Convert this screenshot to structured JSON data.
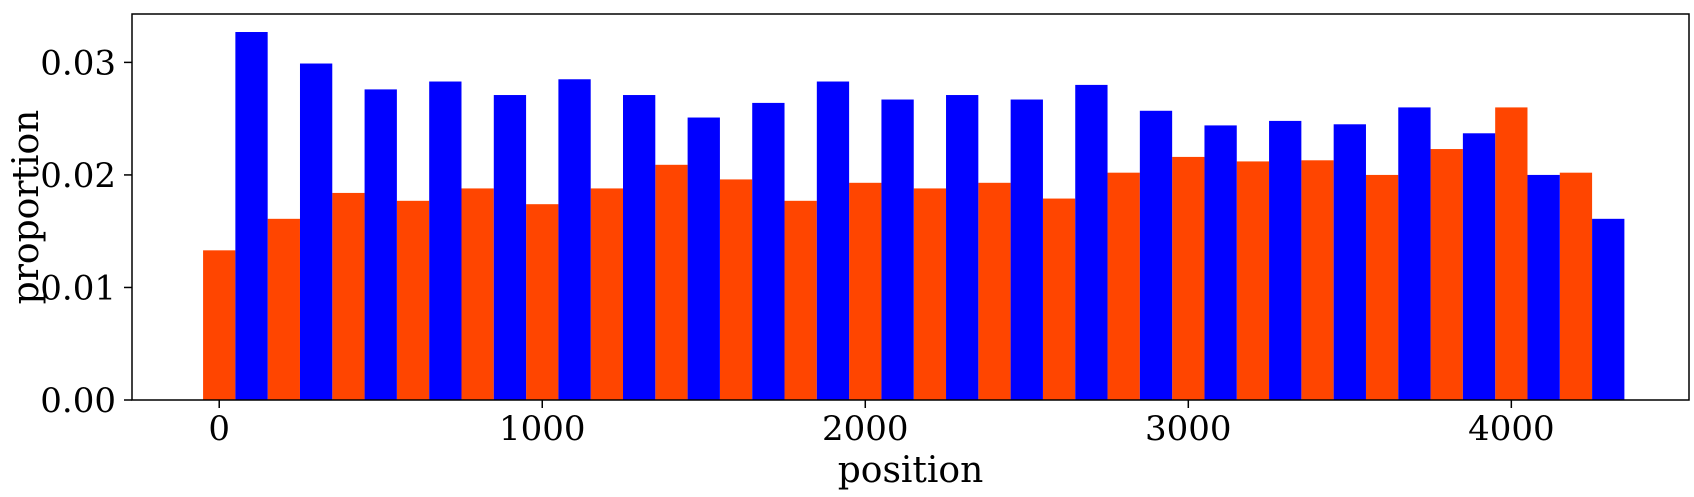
{
  "chart_data": {
    "type": "bar",
    "xlabel": "position",
    "ylabel": "proportion",
    "xlim": [
      -270,
      4550
    ],
    "ylim": [
      0,
      0.0343
    ],
    "xticks": [
      0,
      1000,
      2000,
      3000,
      4000
    ],
    "xtick_labels": [
      "0",
      "1000",
      "2000",
      "3000",
      "4000"
    ],
    "yticks": [
      0.0,
      0.01,
      0.02,
      0.03
    ],
    "ytick_labels": [
      "0.00",
      "0.01",
      "0.02",
      "0.03"
    ],
    "bar_width": 100,
    "grid": false,
    "legend": "none",
    "series": [
      {
        "color": "#ff4500",
        "x": [
          0,
          200,
          400,
          600,
          800,
          1000,
          1200,
          1400,
          1600,
          1800,
          2000,
          2200,
          2400,
          2600,
          2800,
          3000,
          3200,
          3400,
          3600,
          3800,
          4000,
          4200
        ],
        "values": [
          0.0133,
          0.0161,
          0.0184,
          0.0177,
          0.0188,
          0.0174,
          0.0188,
          0.0209,
          0.0196,
          0.0177,
          0.0193,
          0.0188,
          0.0193,
          0.0179,
          0.0202,
          0.0216,
          0.0212,
          0.0213,
          0.02,
          0.0223,
          0.026,
          0.0202
        ]
      },
      {
        "color": "#0000ff",
        "x": [
          100,
          300,
          500,
          700,
          900,
          1100,
          1300,
          1500,
          1700,
          1900,
          2100,
          2300,
          2500,
          2700,
          2900,
          3100,
          3300,
          3500,
          3700,
          3900,
          4100,
          4300
        ],
        "values": [
          0.0327,
          0.0299,
          0.0276,
          0.0283,
          0.0271,
          0.0285,
          0.0271,
          0.0251,
          0.0264,
          0.0283,
          0.0267,
          0.0271,
          0.0267,
          0.028,
          0.0257,
          0.0244,
          0.0248,
          0.0245,
          0.026,
          0.0237,
          0.02,
          0.0161
        ]
      }
    ]
  }
}
